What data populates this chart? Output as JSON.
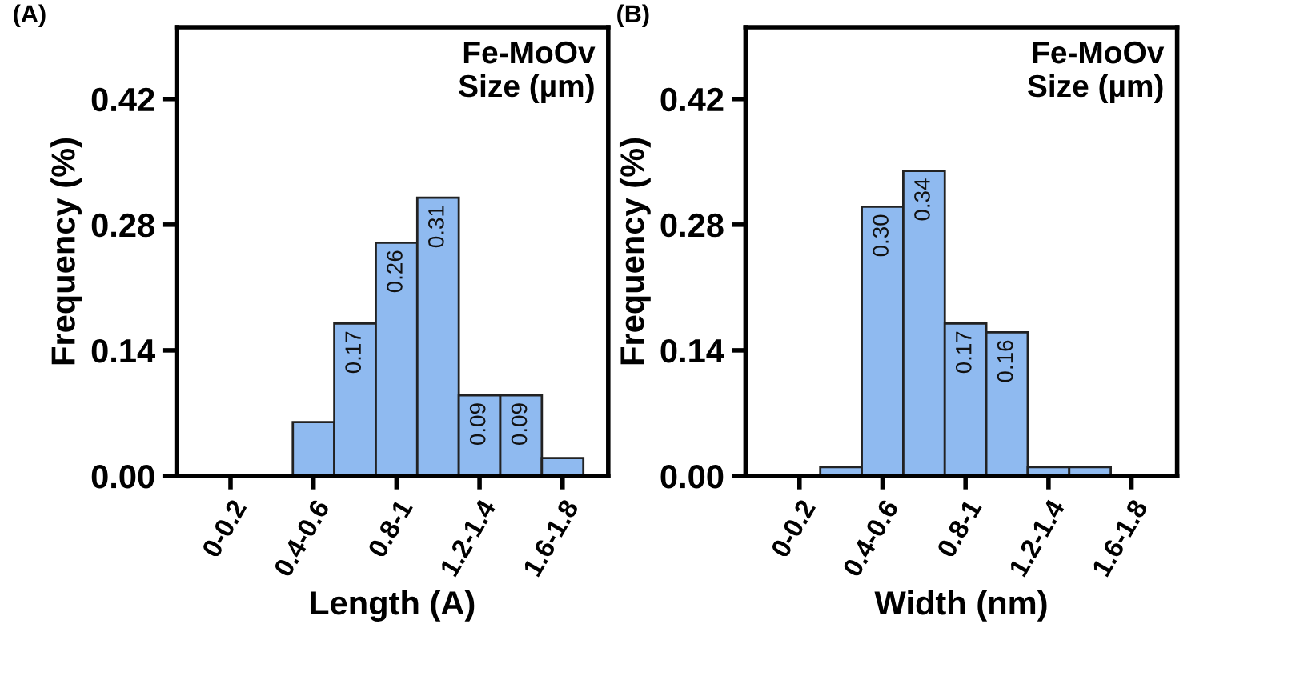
{
  "chart_data": [
    {
      "type": "bar",
      "title": "(A)",
      "xlabel": "Length (A)",
      "ylabel": "Frequency (%)",
      "annotations": [
        "Fe-MoOv\nSize (µm)"
      ],
      "categories": [
        "0-0.2",
        null,
        "0.4-0.6",
        null,
        "0.8-1",
        null,
        "1.2-1.4",
        null,
        "1.6-1.8"
      ],
      "values": [
        null,
        null,
        0.06,
        0.17,
        0.26,
        0.31,
        0.09,
        0.09,
        0.02
      ],
      "value_labels": [
        null,
        null,
        null,
        "0.17",
        "0.26",
        "0.31",
        "0.09",
        "0.09",
        null
      ],
      "color": "#8fbaf0",
      "ylim": [
        0,
        0.5
      ],
      "yticks": [
        "0.00",
        "0.14",
        "0.28",
        "0.42"
      ],
      "grid": false,
      "legend": false
    },
    {
      "type": "bar",
      "title": "(B)",
      "xlabel": "Width (nm)",
      "ylabel": "Frequency (%)",
      "annotations": [
        "Fe-MoOv\nSize (µm)"
      ],
      "categories": [
        "0-0.2",
        null,
        "0.4-0.6",
        null,
        "0.8-1",
        null,
        "1.2-1.4",
        null,
        "1.6-1.8"
      ],
      "values": [
        null,
        0.01,
        0.3,
        0.34,
        0.17,
        0.16,
        0.01,
        0.01,
        null
      ],
      "value_labels": [
        null,
        null,
        "0.30",
        "0.34",
        "0.17",
        "0.16",
        null,
        null,
        null
      ],
      "color": "#8fbaf0",
      "ylim": [
        0,
        0.5
      ],
      "yticks": [
        "0.00",
        "0.14",
        "0.28",
        "0.42"
      ],
      "grid": false,
      "legend": false
    }
  ]
}
